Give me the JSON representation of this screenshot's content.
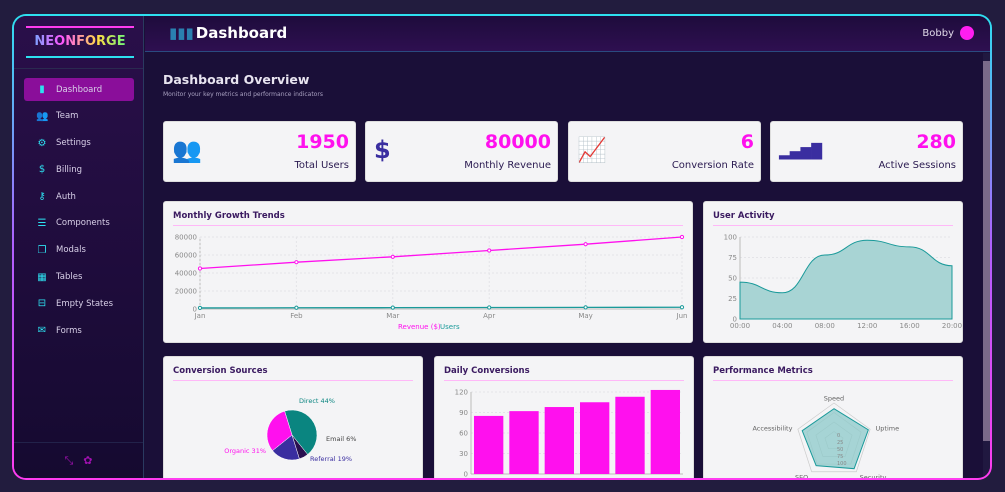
{
  "brand": {
    "name": "NEONFORGE"
  },
  "header": {
    "title": "Dashboard",
    "user": "Bobby",
    "icon": "bar-chart-icon",
    "user_icon": "user-circle-icon"
  },
  "sidebar": {
    "items": [
      {
        "label": "Dashboard",
        "icon": "chart-icon",
        "active": true
      },
      {
        "label": "Team",
        "icon": "users-icon"
      },
      {
        "label": "Settings",
        "icon": "gear-icon"
      },
      {
        "label": "Billing",
        "icon": "dollar-icon"
      },
      {
        "label": "Auth",
        "icon": "key-icon"
      },
      {
        "label": "Components",
        "icon": "list-icon"
      },
      {
        "label": "Modals",
        "icon": "window-icon"
      },
      {
        "label": "Tables",
        "icon": "table-icon"
      },
      {
        "label": "Empty States",
        "icon": "minus-box-icon"
      },
      {
        "label": "Forms",
        "icon": "form-icon"
      }
    ],
    "footer_icons": [
      "collapse-icon",
      "gear-icon"
    ]
  },
  "overview": {
    "title": "Dashboard Overview",
    "subtitle": "Monitor your key metrics and performance indicators"
  },
  "stats": [
    {
      "value": "1950",
      "label": "Total Users",
      "icon": "users-icon"
    },
    {
      "value": "80000",
      "label": "Monthly Revenue",
      "icon": "dollar-icon"
    },
    {
      "value": "6",
      "label": "Conversion Rate",
      "icon": "trend-icon"
    },
    {
      "value": "280",
      "label": "Active Sessions",
      "icon": "signal-icon"
    }
  ],
  "colors": {
    "accent": "#ff10ee",
    "teal": "#1a8a8a",
    "indigo": "#3a2ea0",
    "sidebar_active": "#8a0e9a"
  },
  "chart_data": [
    {
      "type": "line",
      "title": "Monthly Growth Trends",
      "categories": [
        "Jan",
        "Feb",
        "Mar",
        "Apr",
        "May",
        "Jun"
      ],
      "ylim": [
        0,
        80000
      ],
      "yticks": [
        "0",
        "20000",
        "40000",
        "60000",
        "80000"
      ],
      "grid": true,
      "legend": "bottom",
      "series": [
        {
          "name": "Revenue ($)",
          "color": "#ff10ee",
          "values": [
            45000,
            52000,
            58000,
            65000,
            72000,
            80000
          ]
        },
        {
          "name": "Users",
          "color": "#1a9a9a",
          "values": [
            1200,
            1350,
            1500,
            1650,
            1800,
            1950
          ]
        }
      ]
    },
    {
      "type": "area",
      "title": "User Activity",
      "categories": [
        "00:00",
        "04:00",
        "08:00",
        "12:00",
        "16:00",
        "20:00"
      ],
      "ylim": [
        0,
        100
      ],
      "yticks": [
        "0",
        "25",
        "50",
        "75",
        "100"
      ],
      "values": [
        45,
        32,
        78,
        96,
        88,
        65
      ],
      "color": "#1a9a9a"
    },
    {
      "type": "pie",
      "title": "Conversion Sources",
      "slices": [
        {
          "label": "Direct 44%",
          "value": 44,
          "color": "#0a8580"
        },
        {
          "label": "Email 6%",
          "value": 6,
          "color": "#2a1050"
        },
        {
          "label": "Referral 19%",
          "value": 19,
          "color": "#3a2ea0"
        },
        {
          "label": "Organic 31%",
          "value": 31,
          "color": "#ff10ee"
        }
      ]
    },
    {
      "type": "bar",
      "title": "Daily Conversions",
      "ylim": [
        0,
        120
      ],
      "yticks": [
        "0",
        "30",
        "60",
        "90",
        "120"
      ],
      "values": [
        85,
        92,
        98,
        105,
        113,
        123
      ],
      "color": "#ff10ee"
    },
    {
      "type": "radar",
      "title": "Performance Metrics",
      "axes": [
        "Speed",
        "Uptime",
        "Security",
        "SEO",
        "Accessibility"
      ],
      "values": [
        85,
        95,
        90,
        80,
        88
      ],
      "rticks": [
        "0",
        "25",
        "50",
        "75",
        "100"
      ],
      "color": "#1a9a9a"
    }
  ]
}
